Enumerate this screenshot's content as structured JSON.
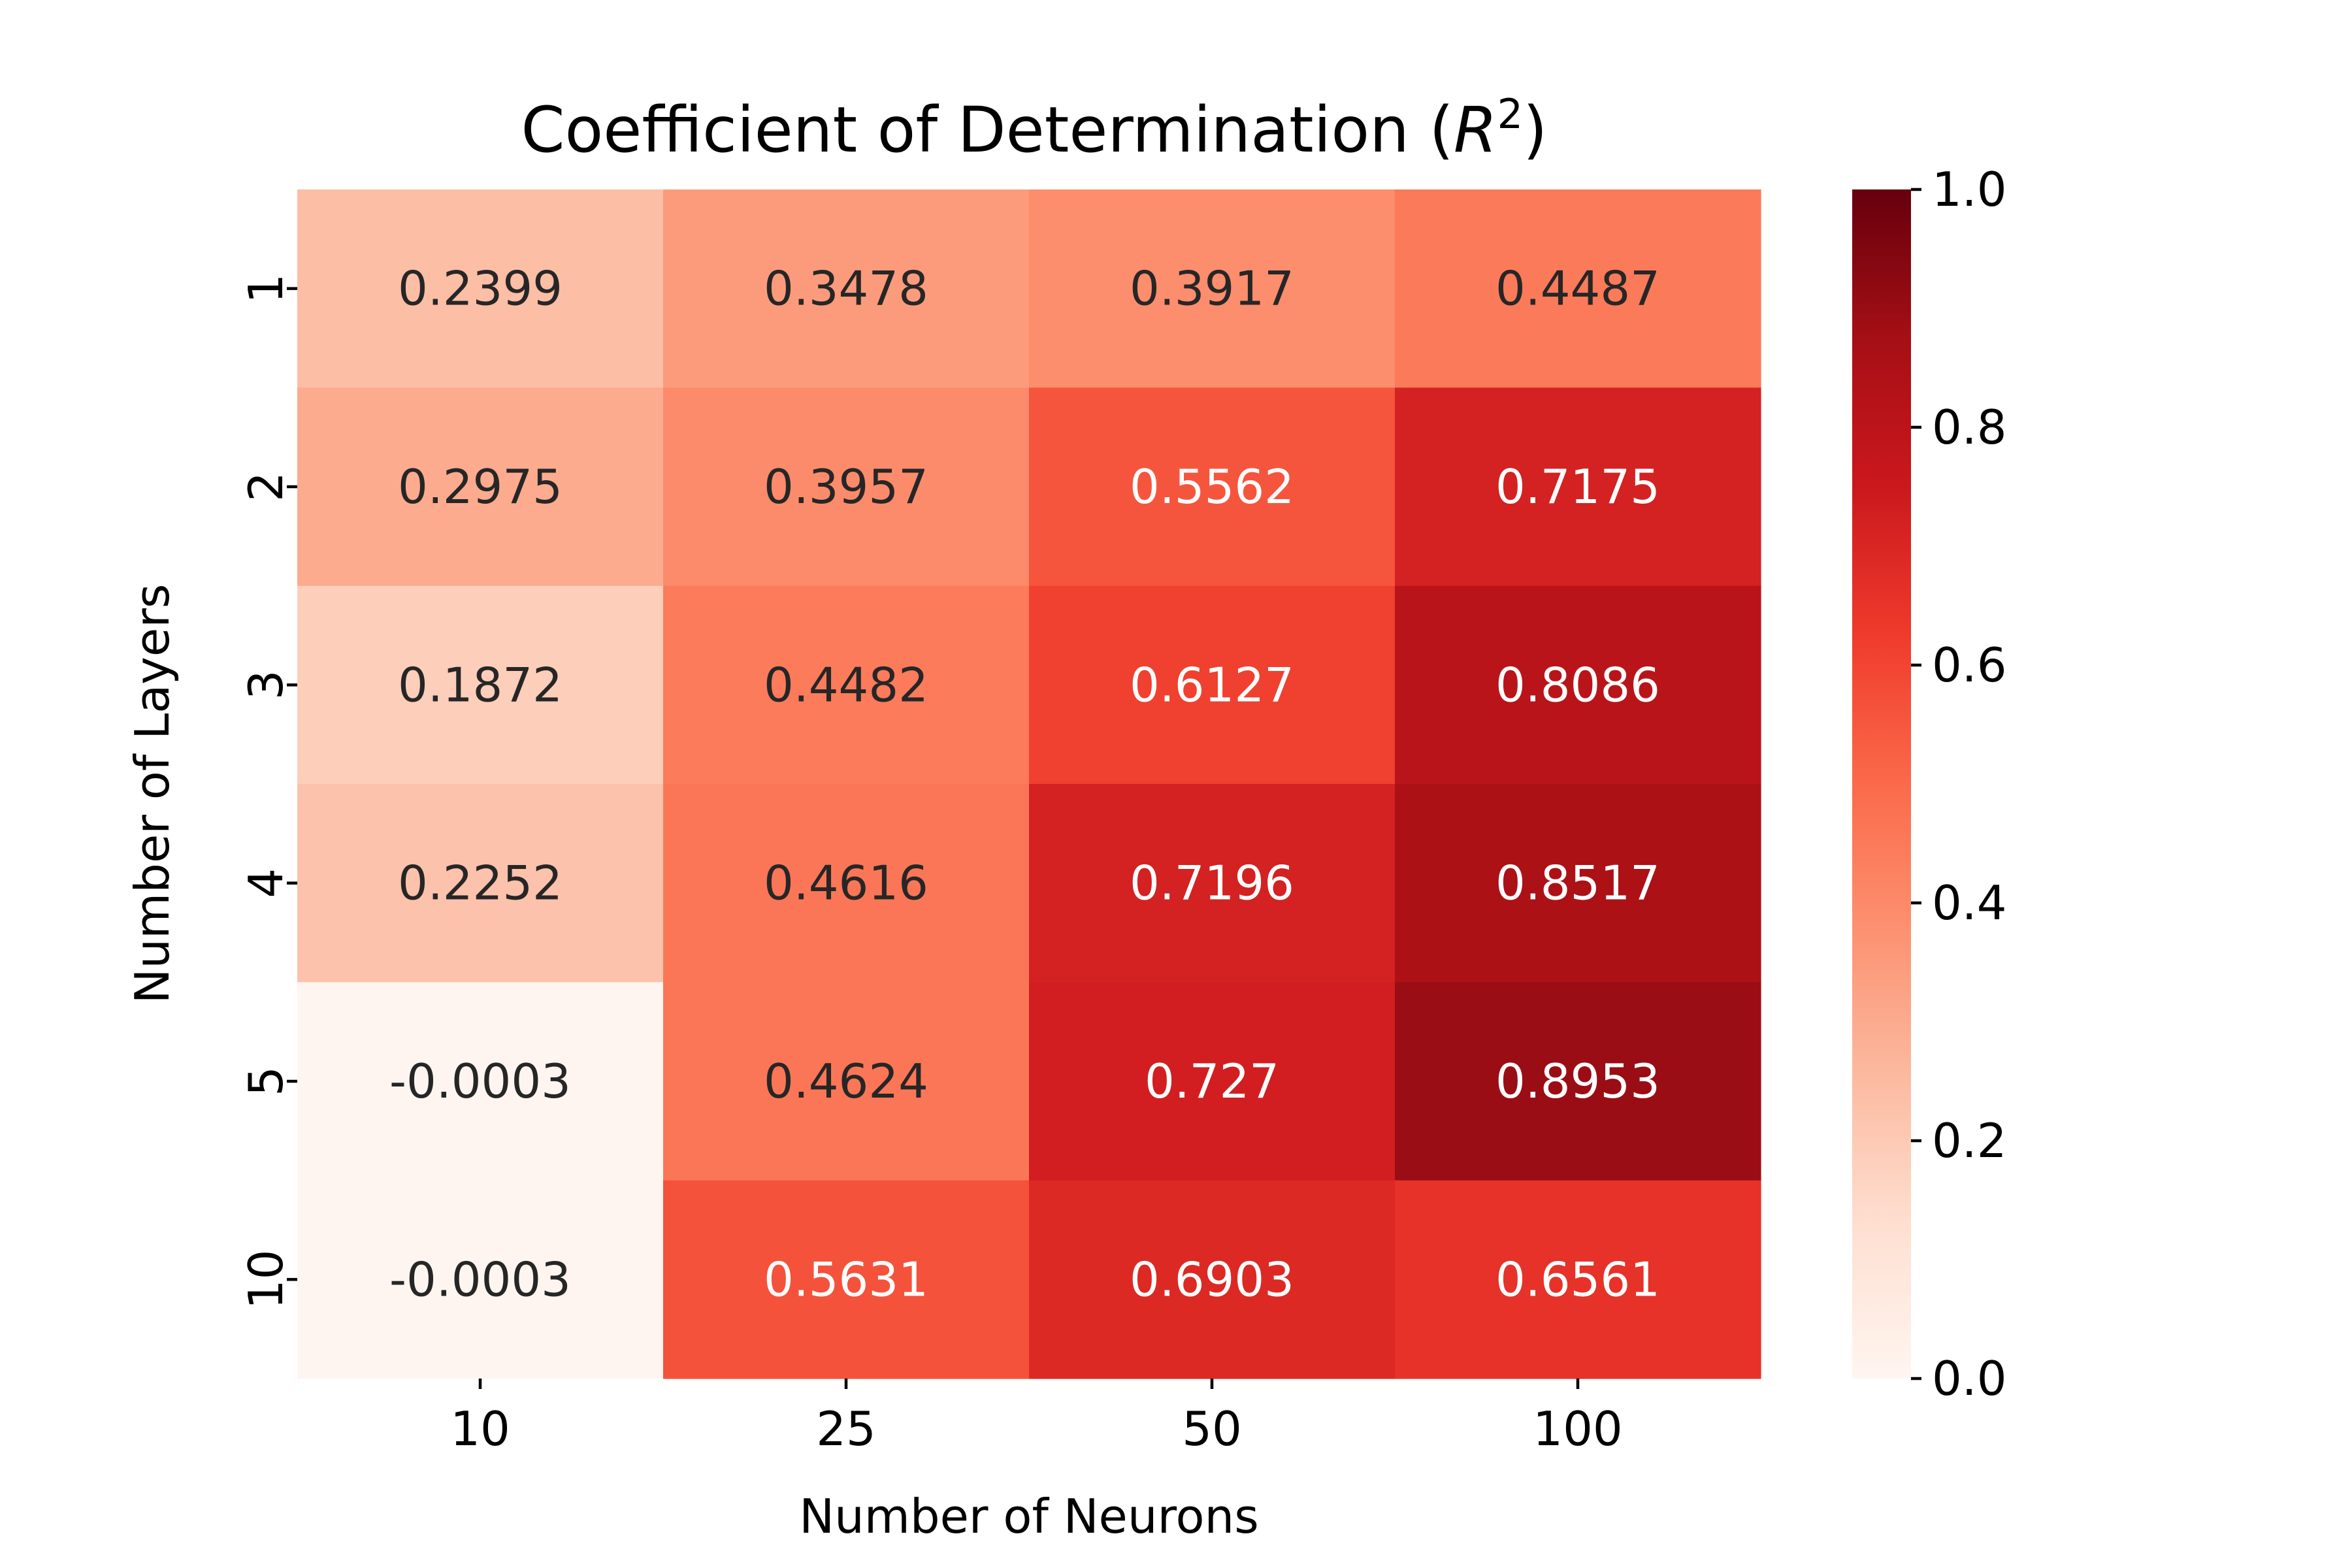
{
  "chart_data": {
    "type": "heatmap",
    "title": "Coefficient of Determination (",
    "title_math": "R",
    "title_exp": "2",
    "title_close": ")",
    "xlabel": "Number of Neurons",
    "ylabel": "Number of Layers",
    "x_categories": [
      "10",
      "25",
      "50",
      "100"
    ],
    "y_categories": [
      "1",
      "2",
      "3",
      "4",
      "5",
      "10"
    ],
    "values": [
      [
        0.2399,
        0.3478,
        0.3917,
        0.4487
      ],
      [
        0.2975,
        0.3957,
        0.5562,
        0.7175
      ],
      [
        0.1872,
        0.4482,
        0.6127,
        0.8086
      ],
      [
        0.2252,
        0.4616,
        0.7196,
        0.8517
      ],
      [
        -0.0003,
        0.4624,
        0.727,
        0.8953
      ],
      [
        -0.0003,
        0.5631,
        0.6903,
        0.6561
      ]
    ],
    "cell_labels": [
      [
        "0.2399",
        "0.3478",
        "0.3917",
        "0.4487"
      ],
      [
        "0.2975",
        "0.3957",
        "0.5562",
        "0.7175"
      ],
      [
        "0.1872",
        "0.4482",
        "0.6127",
        "0.8086"
      ],
      [
        "0.2252",
        "0.4616",
        "0.7196",
        "0.8517"
      ],
      [
        "-0.0003",
        "0.4624",
        "0.727",
        "0.8953"
      ],
      [
        "-0.0003",
        "0.5631",
        "0.6903",
        "0.6561"
      ]
    ],
    "colormap": "Reds",
    "colormap_stops": [
      "#fff5f0",
      "#fee0d2",
      "#fcbba1",
      "#fc9272",
      "#fb6a4a",
      "#ef3b2c",
      "#cb181d",
      "#a50f15",
      "#67000d"
    ],
    "light_text_color": "#ffffff",
    "dark_text_color": "#262626",
    "vmin": 0.0,
    "vmax": 1.0,
    "colorbar_ticks": [
      "0.0",
      "0.2",
      "0.4",
      "0.6",
      "0.8",
      "1.0"
    ],
    "grid": false
  }
}
